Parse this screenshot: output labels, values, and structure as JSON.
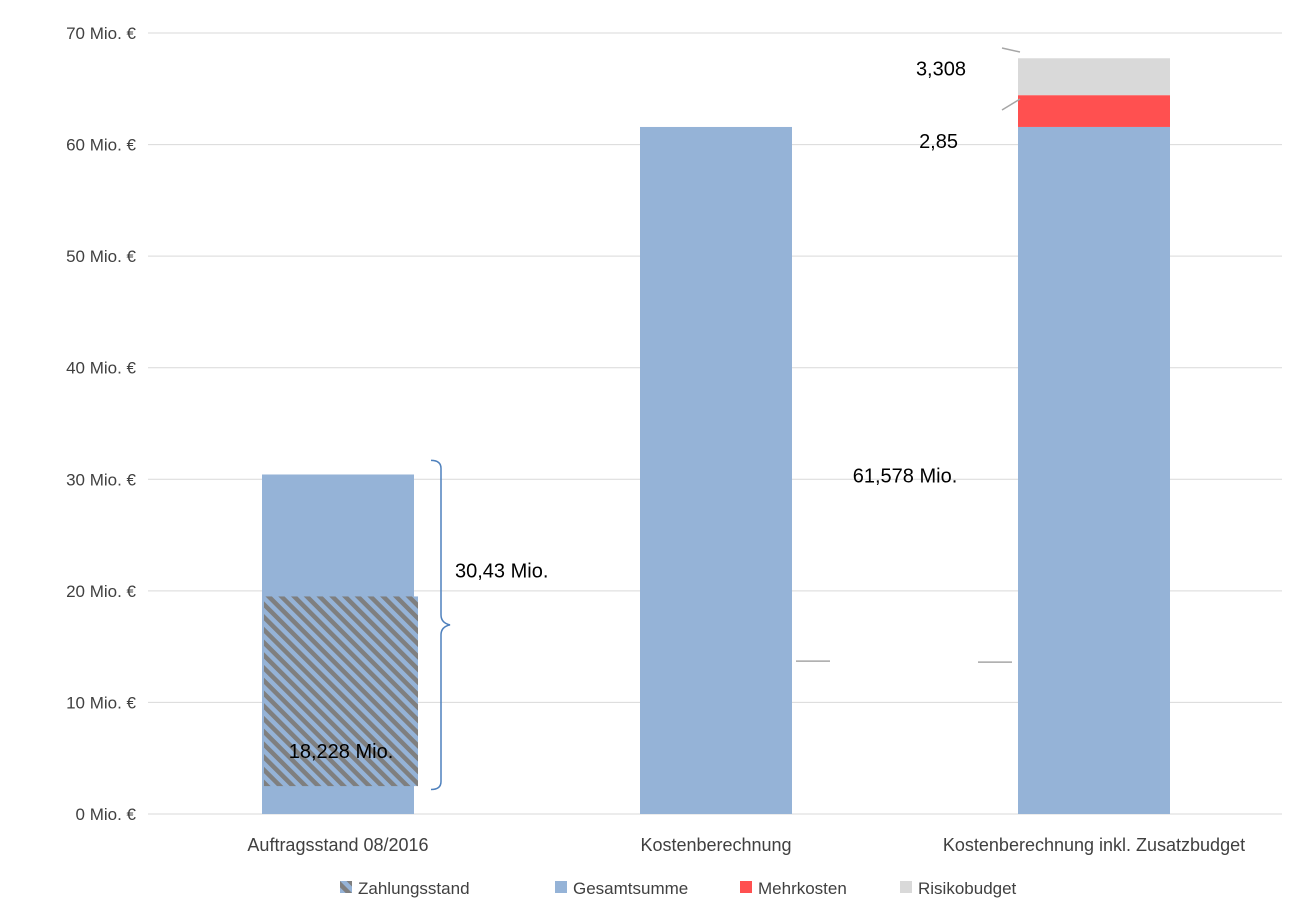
{
  "chart_data": {
    "type": "bar",
    "stacked": true,
    "categories": [
      "Auftragsstand 08/2016",
      "Kostenberechnung",
      "Kostenberechnung inkl. Zusatzbudget"
    ],
    "series": [
      {
        "name": "Gesamtsumme",
        "color": "#95B3D7",
        "values": [
          30.43,
          61.578,
          61.578
        ]
      },
      {
        "name": "Mehrkosten",
        "color": "#FF5050",
        "values": [
          0,
          0,
          2.85
        ]
      },
      {
        "name": "Risikobudget",
        "color": "#D9D9D9",
        "values": [
          0,
          0,
          3.308
        ]
      },
      {
        "name": "Zahlungsstand",
        "color": "#7F7F7F",
        "pattern": "diagonal-stripes",
        "overlay": true,
        "range": [
          2.5,
          19.5
        ],
        "values": [
          18.228,
          null,
          null
        ]
      }
    ],
    "ylim": [
      0,
      70
    ],
    "yticks": [
      0,
      10,
      20,
      30,
      40,
      50,
      60,
      70
    ],
    "ytick_labels": [
      "0 Mio. €",
      "10 Mio. €",
      "20 Mio. €",
      "30 Mio. €",
      "40 Mio. €",
      "50 Mio. €",
      "60 Mio. €",
      "70 Mio. €"
    ],
    "grid": true,
    "legend_position": "bottom",
    "legend": [
      {
        "name": "Zahlungsstand",
        "color": "#7F7F7F",
        "pattern": "diagonal-stripes"
      },
      {
        "name": "Gesamtsumme",
        "color": "#95B3D7"
      },
      {
        "name": "Mehrkosten",
        "color": "#FF5050"
      },
      {
        "name": "Risikobudget",
        "color": "#D9D9D9"
      }
    ],
    "annotations": {
      "brace_label": "30,43 Mio.",
      "zahlungsstand_label": "18,228 Mio.",
      "gesamt_label": "61,578 Mio.",
      "mehrkosten_label": "2,85",
      "risikobudget_label": "3,308"
    },
    "leader_line_y": 13.7,
    "brace_range": [
      2.2,
      31.7
    ]
  }
}
